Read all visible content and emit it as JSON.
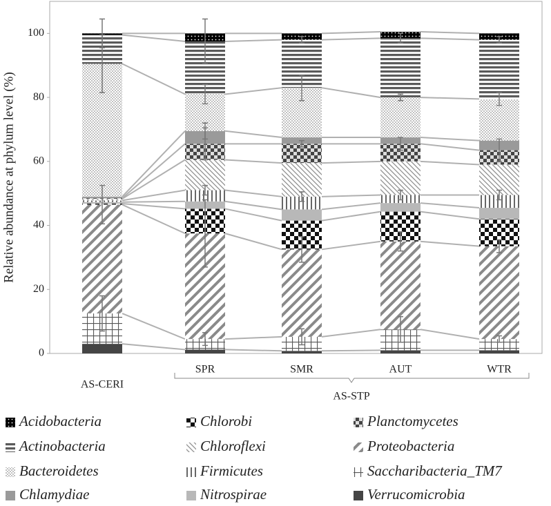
{
  "chart_data": {
    "type": "stacked-bar",
    "y_label": "Relative abundance at phylum level (%)",
    "categories": [
      "AS-CERI",
      "SPR",
      "SMR",
      "AUT",
      "WTR"
    ],
    "group_label": "AS-STP",
    "ylim": [
      0,
      110
    ],
    "yticks": [
      0,
      20,
      40,
      60,
      80,
      100
    ],
    "series": [
      {
        "name": "Verrucomicrobia",
        "pattern": "solid-dark",
        "color": "#454545",
        "values": [
          3,
          1.2,
          0.8,
          1,
          1
        ],
        "errors": [
          null,
          null,
          null,
          null,
          null
        ]
      },
      {
        "name": "Saccharibacteria_TM7",
        "pattern": "grid",
        "color": "#555555",
        "values": [
          9.5,
          3.3,
          4.4,
          6.5,
          3.5
        ],
        "errors": [
          5.5,
          2,
          2.5,
          4,
          1
        ]
      },
      {
        "name": "Proteobacteria",
        "pattern": "wide-diagonal",
        "color": "#8a8a8a",
        "values": [
          34,
          33,
          27.3,
          27.5,
          29
        ],
        "errors": [
          6,
          10.5,
          4,
          3,
          2
        ]
      },
      {
        "name": "Chlorobi",
        "pattern": "checker",
        "color": "#111111",
        "values": [
          0.3,
          7.7,
          9,
          9.3,
          8.5
        ],
        "errors": [
          null,
          null,
          null,
          null,
          null
        ]
      },
      {
        "name": "Nitrospirae",
        "pattern": "solid-light",
        "color": "#b8b8b8",
        "values": [
          0.5,
          2.3,
          3.5,
          2.7,
          3.5
        ],
        "errors": [
          null,
          null,
          null,
          null,
          null
        ]
      },
      {
        "name": "Firmicutes",
        "pattern": "vertical",
        "color": "#666666",
        "values": [
          0.5,
          3.5,
          4,
          2.5,
          4
        ],
        "errors": [
          null,
          1.5,
          1.5,
          1.5,
          1.5
        ]
      },
      {
        "name": "Chloroflexi",
        "pattern": "thin-diagonal",
        "color": "#888888",
        "values": [
          0.5,
          9.5,
          10.5,
          10.5,
          9.5
        ],
        "errors": [
          null,
          null,
          null,
          null,
          null
        ]
      },
      {
        "name": "Planctomycetes",
        "pattern": "checker-gray",
        "color": "#555555",
        "values": [
          0.2,
          5,
          6,
          5.5,
          4.5
        ],
        "errors": [
          null,
          5,
          1,
          2,
          3.5
        ]
      },
      {
        "name": "Chlamydiae",
        "pattern": "solid-mid",
        "color": "#9a9a9a",
        "values": [
          0.5,
          4,
          2,
          2,
          3
        ],
        "errors": [
          null,
          2.5,
          null,
          null,
          null
        ]
      },
      {
        "name": "Bacteroidetes",
        "pattern": "dots",
        "color": "#777777",
        "values": [
          41.5,
          11.5,
          15.5,
          12.5,
          13
        ],
        "errors": [
          9,
          3,
          4,
          1,
          2
        ]
      },
      {
        "name": "Actinobacteria",
        "pattern": "horizontal",
        "color": "#5a5a5a",
        "values": [
          9,
          16.5,
          15,
          18.5,
          18.5
        ],
        "errors": [
          null,
          7,
          1,
          1.5,
          1
        ]
      },
      {
        "name": "Acidobacteria",
        "pattern": "black-dots",
        "color": "#000000",
        "values": [
          0.5,
          2.5,
          2,
          2,
          2
        ],
        "errors": [
          4.5,
          null,
          null,
          null,
          null
        ]
      }
    ]
  }
}
